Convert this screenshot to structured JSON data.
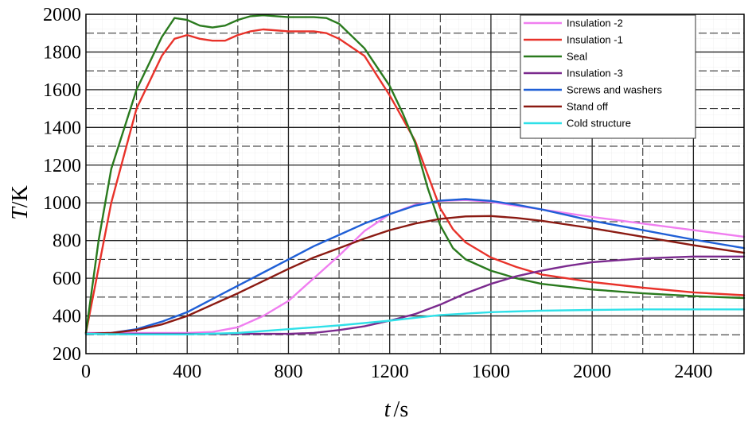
{
  "chart_data": {
    "type": "line",
    "xlabel_var": "t",
    "xlabel_unit": "/s",
    "ylabel_var": "T",
    "ylabel_unit": "/K",
    "xlim": [
      0,
      2600
    ],
    "ylim": [
      200,
      2000
    ],
    "x_ticks": [
      0,
      400,
      800,
      1200,
      1600,
      2000,
      2400
    ],
    "y_ticks": [
      200,
      400,
      600,
      800,
      1000,
      1200,
      1400,
      1600,
      1800,
      2000
    ],
    "grid": true,
    "legend_position": "top-right",
    "series": [
      {
        "name": "Insulation -2",
        "color": "#f07ef0",
        "x": [
          0,
          200,
          400,
          500,
          600,
          700,
          800,
          900,
          1000,
          1100,
          1200,
          1300,
          1400,
          1500,
          1600,
          1700,
          1800,
          1900,
          2000,
          2200,
          2400,
          2600
        ],
        "y": [
          310,
          310,
          310,
          315,
          340,
          400,
          480,
          600,
          720,
          850,
          940,
          990,
          1010,
          1015,
          1005,
          985,
          965,
          945,
          925,
          890,
          855,
          820
        ]
      },
      {
        "name": "Insulation -1",
        "color": "#e8322a",
        "x": [
          0,
          100,
          200,
          300,
          350,
          400,
          450,
          500,
          550,
          600,
          650,
          700,
          800,
          900,
          950,
          1000,
          1100,
          1200,
          1300,
          1350,
          1400,
          1450,
          1500,
          1600,
          1700,
          1800,
          2000,
          2200,
          2400,
          2600
        ],
        "y": [
          310,
          1000,
          1500,
          1780,
          1870,
          1890,
          1870,
          1860,
          1860,
          1890,
          1910,
          1920,
          1910,
          1910,
          1900,
          1870,
          1780,
          1570,
          1330,
          1150,
          970,
          860,
          790,
          710,
          660,
          620,
          580,
          550,
          525,
          510
        ]
      },
      {
        "name": "Seal",
        "color": "#2a7a1e",
        "x": [
          0,
          50,
          100,
          200,
          300,
          350,
          400,
          450,
          500,
          550,
          600,
          650,
          700,
          800,
          900,
          950,
          1000,
          1100,
          1200,
          1250,
          1300,
          1350,
          1400,
          1450,
          1500,
          1600,
          1700,
          1800,
          2000,
          2200,
          2400,
          2600
        ],
        "y": [
          310,
          800,
          1180,
          1600,
          1880,
          1980,
          1970,
          1940,
          1930,
          1940,
          1970,
          1990,
          1995,
          1985,
          1985,
          1980,
          1950,
          1820,
          1620,
          1480,
          1320,
          1080,
          880,
          760,
          700,
          640,
          600,
          570,
          540,
          520,
          505,
          495
        ]
      },
      {
        "name": "Insulation -3",
        "color": "#7b2a8e",
        "x": [
          0,
          400,
          600,
          800,
          900,
          1000,
          1100,
          1200,
          1300,
          1400,
          1500,
          1600,
          1700,
          1800,
          1900,
          2000,
          2200,
          2400,
          2600
        ],
        "y": [
          305,
          305,
          305,
          305,
          310,
          325,
          345,
          375,
          410,
          460,
          520,
          570,
          610,
          640,
          665,
          685,
          705,
          715,
          715
        ]
      },
      {
        "name": "Screws and washers",
        "color": "#1f5fd6",
        "x": [
          0,
          100,
          200,
          300,
          400,
          500,
          600,
          700,
          800,
          900,
          1000,
          1100,
          1200,
          1300,
          1400,
          1500,
          1600,
          1700,
          1800,
          1900,
          2000,
          2200,
          2400,
          2600
        ],
        "y": [
          305,
          310,
          330,
          370,
          420,
          490,
          560,
          630,
          700,
          770,
          830,
          890,
          940,
          985,
          1012,
          1020,
          1010,
          990,
          965,
          935,
          905,
          855,
          805,
          760
        ]
      },
      {
        "name": "Stand off",
        "color": "#8b1a12",
        "x": [
          0,
          100,
          200,
          300,
          400,
          500,
          600,
          700,
          800,
          900,
          1000,
          1100,
          1200,
          1300,
          1400,
          1500,
          1600,
          1700,
          1800,
          1900,
          2000,
          2200,
          2400,
          2600
        ],
        "y": [
          305,
          310,
          325,
          355,
          400,
          460,
          520,
          585,
          650,
          710,
          760,
          810,
          855,
          890,
          915,
          928,
          930,
          920,
          905,
          885,
          865,
          820,
          775,
          735
        ]
      },
      {
        "name": "Cold structure",
        "color": "#2ee0e8",
        "x": [
          0,
          200,
          400,
          600,
          800,
          1000,
          1200,
          1400,
          1600,
          1800,
          2000,
          2200,
          2400,
          2600
        ],
        "y": [
          305,
          302,
          302,
          310,
          330,
          350,
          375,
          405,
          420,
          428,
          432,
          435,
          435,
          435
        ]
      }
    ]
  }
}
